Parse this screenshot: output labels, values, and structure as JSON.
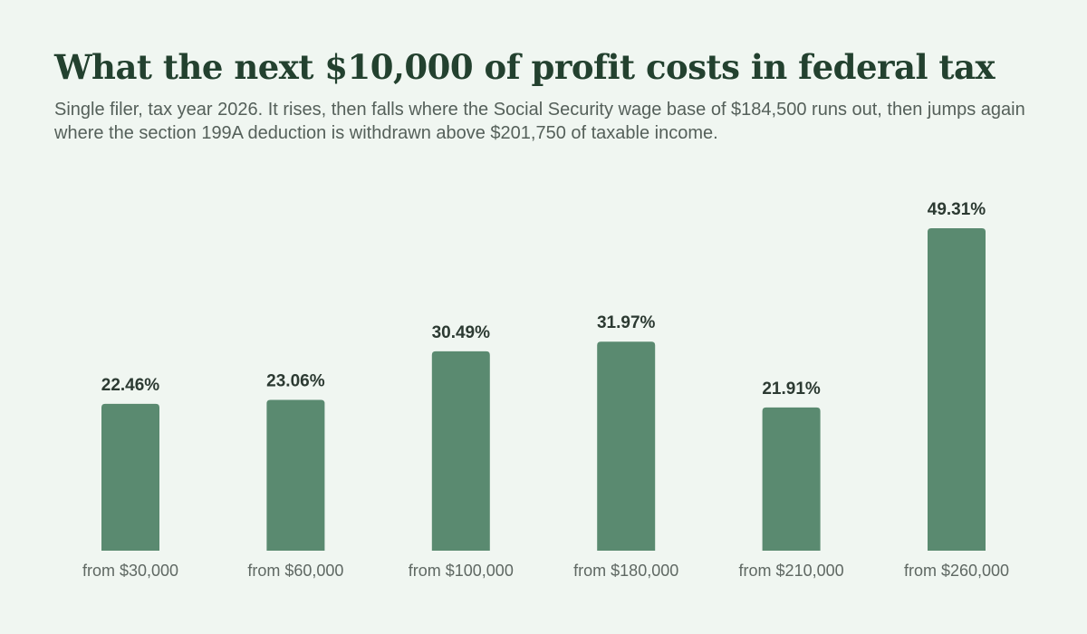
{
  "colors": {
    "background": "#f0f6f1",
    "bar": "#5a8a70",
    "title": "#23412f",
    "subtitle": "#55605a"
  },
  "chart_data": {
    "type": "bar",
    "title": "What the next $10,000 of profit costs in federal tax",
    "subtitle": "Single filer, tax year 2026. It rises, then falls where the Social Security wage base of $184,500 runs out, then jumps again where the section 199A deduction is withdrawn above $201,750 of taxable income.",
    "categories": [
      "from $30,000",
      "from $60,000",
      "from $100,000",
      "from $180,000",
      "from $210,000",
      "from $260,000"
    ],
    "values": [
      22.46,
      23.06,
      30.49,
      31.97,
      21.91,
      49.31
    ],
    "value_labels": [
      "22.46%",
      "23.06%",
      "30.49%",
      "31.97%",
      "21.91%",
      "49.31%"
    ],
    "unit": "%",
    "xlabel": "",
    "ylabel": "",
    "ylim": [
      0,
      49.31
    ],
    "grid": false,
    "legend": "none"
  }
}
